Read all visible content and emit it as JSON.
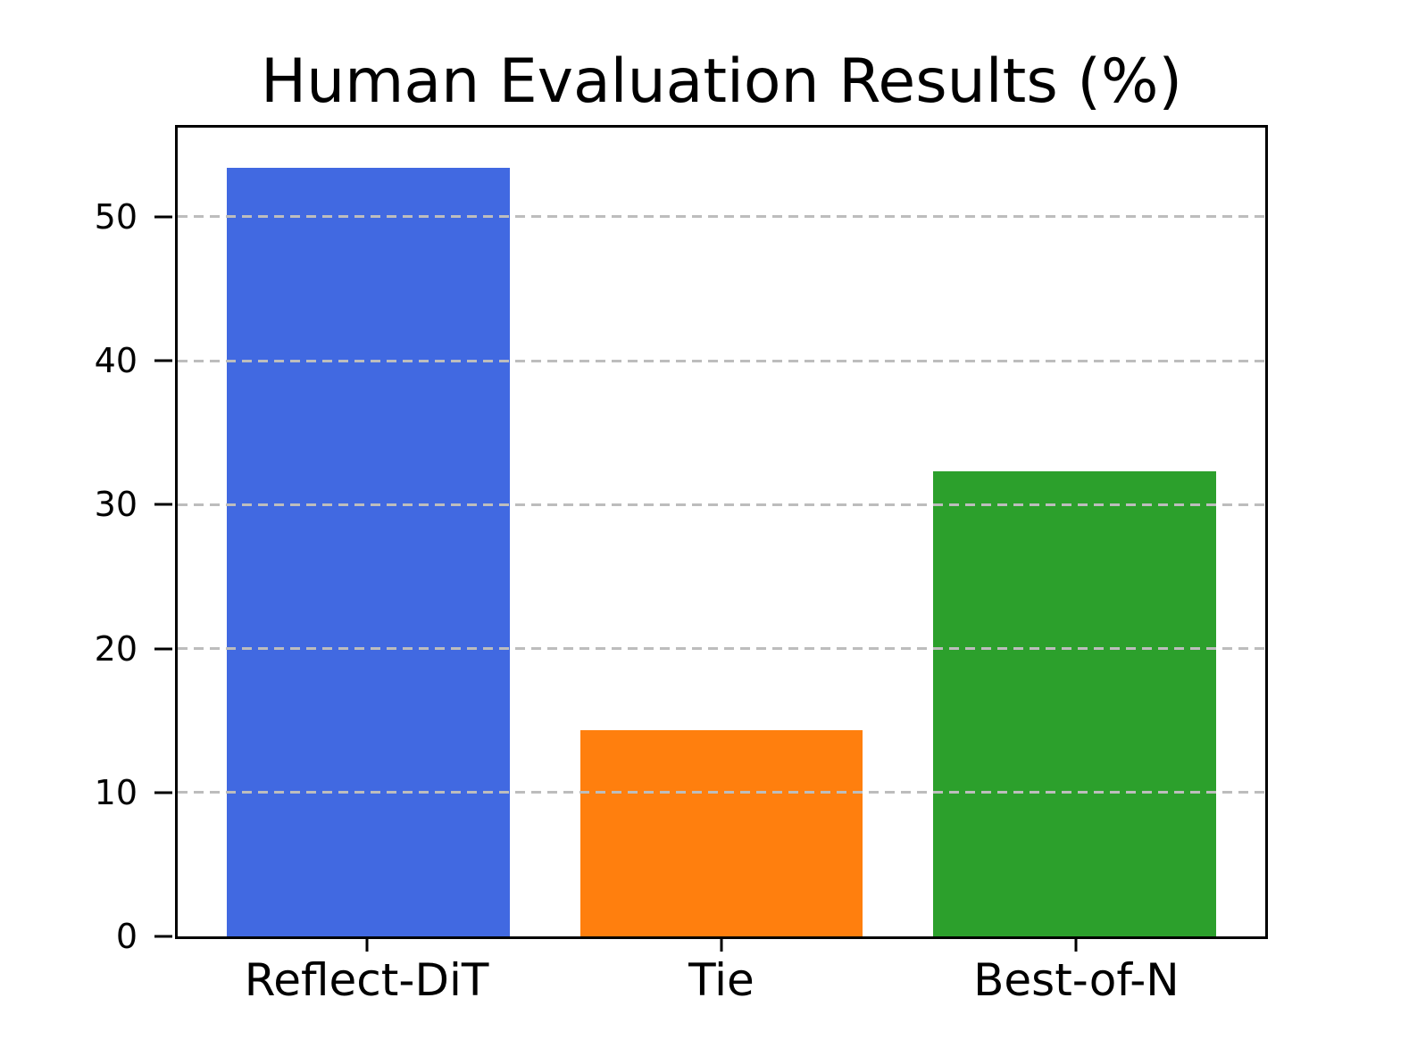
{
  "chart_data": {
    "type": "bar",
    "title": "Human Evaluation Results (%)",
    "categories": [
      "Reflect-DiT",
      "Tie",
      "Best-of-N"
    ],
    "values": [
      53.4,
      14.3,
      32.3
    ],
    "bar_colors": [
      "#4169E1",
      "#FF7F0E",
      "#2CA02C"
    ],
    "xlabel": "",
    "ylabel": "",
    "ylim": [
      0,
      56.2
    ],
    "yticks": [
      0,
      10,
      20,
      30,
      40,
      50
    ],
    "bar_width_fraction": 0.8,
    "grid": "horizontal-dashed-above-bars",
    "gridline_color": "#bdbdbd",
    "axis_color": "#000000",
    "background_color": "#ffffff"
  }
}
